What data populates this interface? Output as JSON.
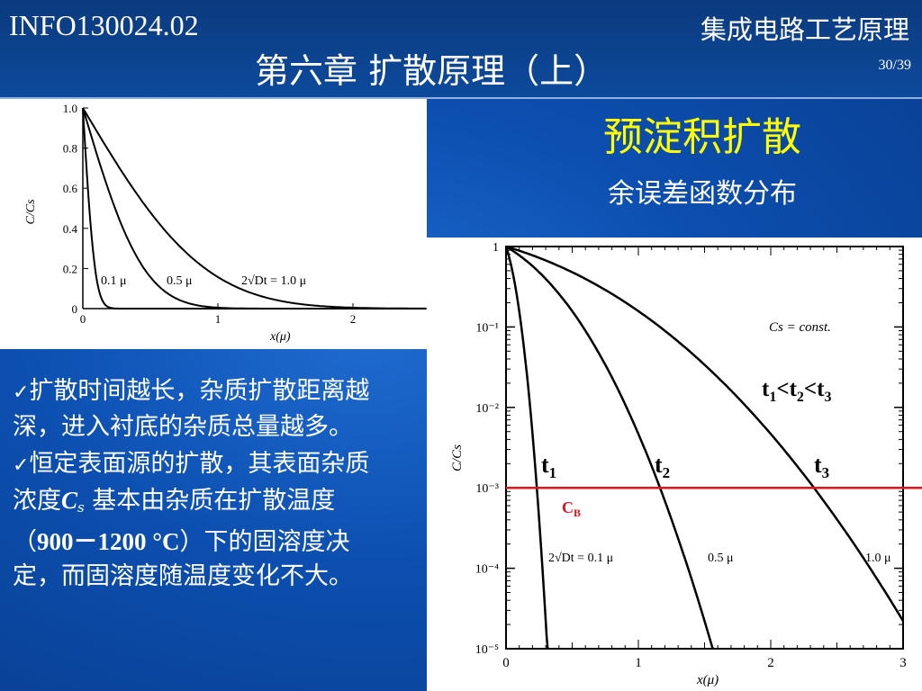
{
  "header": {
    "course_code": "INFO130024.02",
    "course_name": "集成电路工艺原理",
    "chapter_title": "第六章 扩散原理（上）",
    "page": "30/39"
  },
  "section": {
    "heading": "预淀积扩散",
    "subheading": "余误差函数分布"
  },
  "bullets": [
    {
      "text": "扩散时间越长，杂质扩散距离越深，进入衬底的杂质总量越多。"
    },
    {
      "prefix": "恒定表面源的扩散，其表面杂质浓度",
      "cs_main": "C",
      "cs_sub": "s",
      "middle": " 基本由杂质在扩散温度（",
      "temp": "900－1200 °C",
      "suffix": "）下的固溶度决定，而固溶度随温度变化不大。"
    }
  ],
  "check_glyph": "✓",
  "colors": {
    "heading": "#ffff00",
    "cb_line": "#e0141e",
    "background": "#0c4fb0"
  },
  "chart_data": [
    {
      "type": "line",
      "scale": "linear",
      "xlabel": "x(μ)",
      "ylabel": "C/Cs",
      "xlim": [
        0,
        2.5
      ],
      "ylim": [
        0,
        1.0
      ],
      "x_ticks": [
        "0",
        "1",
        "2"
      ],
      "y_ticks": [
        "0",
        "0.2",
        "0.4",
        "0.6",
        "0.8",
        "1.0"
      ],
      "series": [
        {
          "label": "0.1 μ",
          "two_root_Dt": 0.1
        },
        {
          "label": "0.5 μ",
          "two_root_Dt": 0.5
        },
        {
          "label": "2√Dt = 1.0 μ",
          "two_root_Dt": 1.0
        }
      ],
      "function": "erfc(x / (2√Dt))"
    },
    {
      "type": "line",
      "scale": "log",
      "xlabel": "x(μ)",
      "ylabel": "C/Cs",
      "xlim": [
        0,
        3
      ],
      "ylim": [
        1e-05,
        1
      ],
      "x_ticks": [
        "0",
        "1",
        "2",
        "3"
      ],
      "y_ticks": [
        "10⁻⁵",
        "10⁻⁴",
        "10⁻³",
        "10⁻²",
        "10⁻¹",
        "1"
      ],
      "series": [
        {
          "label": "2√Dt = 0.1 μ",
          "two_root_Dt": 0.1,
          "time_label": "t1"
        },
        {
          "label": "0.5 μ",
          "two_root_Dt": 0.5,
          "time_label": "t2"
        },
        {
          "label": "1.0 μ",
          "two_root_Dt": 1.0,
          "time_label": "t3"
        }
      ],
      "annotations": {
        "cs_note": "Cs = const.",
        "order": "t1<t2<t3",
        "cb_label": "CB",
        "cb_level": 0.001
      },
      "function": "erfc(x / (2√Dt))"
    }
  ]
}
